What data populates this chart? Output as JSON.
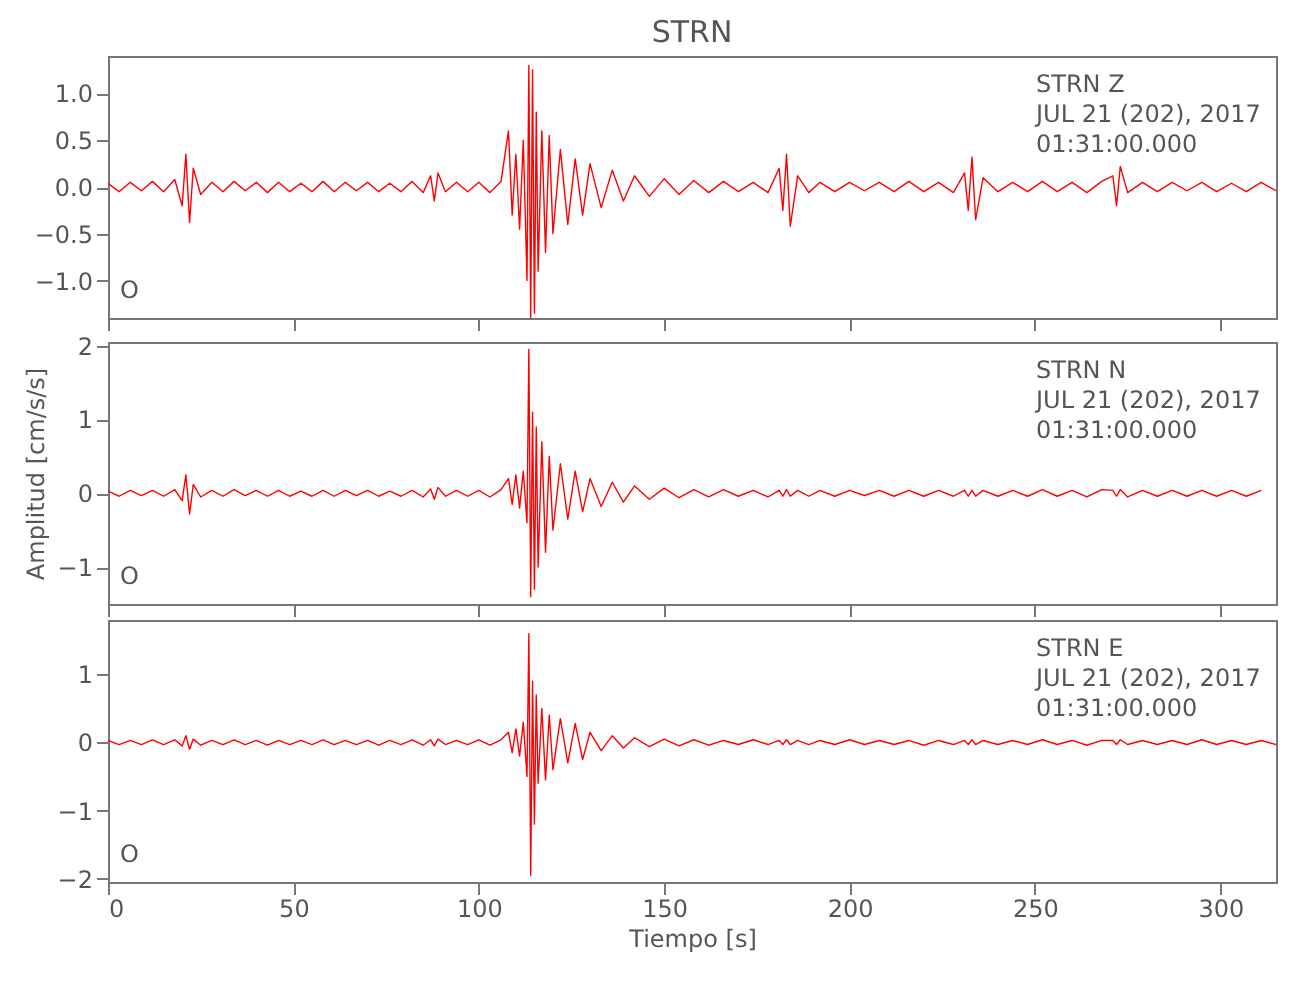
{
  "chart_data": [
    {
      "type": "line",
      "title": "STRN",
      "xlim": [
        0,
        315
      ],
      "xticks": [
        0,
        50,
        100,
        150,
        200,
        250,
        300
      ],
      "ylim": [
        -1.4,
        1.4
      ],
      "yticks": [
        {
          "value": -1,
          "label": "−1.0"
        },
        {
          "value": -0.5,
          "label": "−0.5"
        },
        {
          "value": 0,
          "label": "0.0"
        },
        {
          "value": 0.5,
          "label": "0.5"
        },
        {
          "value": 1,
          "label": "1.0"
        }
      ],
      "tick_labels": "y",
      "annotations": [
        "STRN   Z",
        "JUL 21 (202), 2017",
        "01:31:00.000",
        "O"
      ],
      "series": [
        {
          "color": "#ff0000",
          "x": [
            0,
            3,
            6,
            9,
            12,
            15,
            18,
            20,
            21,
            22,
            23,
            25,
            28,
            31,
            34,
            37,
            40,
            43,
            46,
            49,
            52,
            55,
            58,
            61,
            64,
            67,
            70,
            73,
            76,
            79,
            82,
            85,
            87,
            88,
            89,
            91,
            94,
            97,
            100,
            103,
            106,
            108,
            109,
            110,
            111,
            112,
            113,
            113.5,
            114,
            114.5,
            115,
            115.5,
            116,
            117,
            118,
            119,
            120,
            122,
            124,
            126,
            128,
            130,
            133,
            136,
            139,
            142,
            146,
            150,
            154,
            158,
            162,
            166,
            170,
            174,
            178,
            181,
            182,
            183,
            184,
            186,
            189,
            192,
            196,
            200,
            204,
            208,
            212,
            216,
            220,
            224,
            228,
            231,
            232,
            233,
            234,
            236,
            240,
            244,
            248,
            252,
            256,
            260,
            264,
            268,
            271,
            272,
            273,
            275,
            279,
            283,
            287,
            291,
            295,
            299,
            303,
            307,
            311,
            315
          ],
          "values": [
            0.04,
            -0.05,
            0.05,
            -0.04,
            0.06,
            -0.05,
            0.08,
            -0.2,
            0.35,
            -0.38,
            0.2,
            -0.08,
            0.05,
            -0.05,
            0.06,
            -0.04,
            0.05,
            -0.06,
            0.05,
            -0.05,
            0.04,
            -0.05,
            0.06,
            -0.05,
            0.05,
            -0.04,
            0.05,
            -0.05,
            0.04,
            -0.05,
            0.06,
            -0.06,
            0.12,
            -0.15,
            0.15,
            -0.05,
            0.05,
            -0.05,
            0.05,
            -0.06,
            0.06,
            0.6,
            -0.3,
            0.35,
            -0.45,
            0.5,
            -1.0,
            1.3,
            -1.4,
            1.25,
            -1.35,
            0.8,
            -0.9,
            0.6,
            -0.7,
            0.55,
            -0.5,
            0.4,
            -0.4,
            0.3,
            -0.3,
            0.25,
            -0.22,
            0.18,
            -0.15,
            0.12,
            -0.1,
            0.09,
            -0.08,
            0.07,
            -0.06,
            0.06,
            -0.05,
            0.05,
            -0.06,
            0.2,
            -0.25,
            0.35,
            -0.42,
            0.12,
            -0.06,
            0.05,
            -0.05,
            0.05,
            -0.04,
            0.05,
            -0.05,
            0.06,
            -0.05,
            0.05,
            -0.06,
            0.15,
            -0.25,
            0.32,
            -0.35,
            0.1,
            -0.05,
            0.05,
            -0.05,
            0.06,
            -0.05,
            0.05,
            -0.06,
            0.06,
            0.12,
            -0.2,
            0.22,
            -0.06,
            0.05,
            -0.05,
            0.05,
            -0.04,
            0.05,
            -0.05,
            0.04,
            -0.05,
            0.05,
            -0.04
          ]
        }
      ]
    },
    {
      "type": "line",
      "ylabel": "Amplitud [cm/s/s]",
      "xlim": [
        0,
        315
      ],
      "xticks": [
        0,
        50,
        100,
        150,
        200,
        250,
        300
      ],
      "ylim": [
        -1.5,
        2.05
      ],
      "yticks": [
        {
          "value": -1,
          "label": "−1"
        },
        0,
        1,
        2
      ],
      "tick_labels": "y",
      "annotations": [
        "STRN   N",
        "JUL 21 (202), 2017",
        "01:31:00.000",
        "O"
      ],
      "series": [
        {
          "color": "#ff0000",
          "x": [
            0,
            3,
            6,
            9,
            12,
            15,
            18,
            20,
            21,
            22,
            23,
            25,
            28,
            31,
            34,
            37,
            40,
            43,
            46,
            49,
            52,
            55,
            58,
            61,
            64,
            67,
            70,
            73,
            76,
            79,
            82,
            85,
            87,
            88,
            89,
            91,
            94,
            97,
            100,
            103,
            106,
            108,
            109,
            110,
            111,
            112,
            113,
            113.5,
            114,
            114.5,
            115,
            115.5,
            116,
            117,
            118,
            119,
            120,
            122,
            124,
            126,
            128,
            130,
            133,
            136,
            139,
            142,
            146,
            150,
            154,
            158,
            162,
            166,
            170,
            174,
            178,
            181,
            182,
            183,
            184,
            186,
            189,
            192,
            196,
            200,
            204,
            208,
            212,
            216,
            220,
            224,
            228,
            231,
            232,
            233,
            234,
            236,
            240,
            244,
            248,
            252,
            256,
            260,
            264,
            268,
            271,
            272,
            273,
            275,
            279,
            283,
            287,
            291,
            295,
            299,
            303,
            307,
            311
          ],
          "values": [
            0.03,
            -0.04,
            0.04,
            -0.03,
            0.04,
            -0.04,
            0.05,
            -0.1,
            0.25,
            -0.28,
            0.12,
            -0.05,
            0.04,
            -0.04,
            0.05,
            -0.03,
            0.04,
            -0.04,
            0.04,
            -0.04,
            0.03,
            -0.04,
            0.04,
            -0.04,
            0.04,
            -0.03,
            0.04,
            -0.04,
            0.03,
            -0.04,
            0.04,
            -0.05,
            0.06,
            -0.08,
            0.08,
            -0.04,
            0.04,
            -0.04,
            0.04,
            -0.05,
            0.05,
            0.2,
            -0.15,
            0.25,
            -0.2,
            0.3,
            -0.4,
            1.95,
            -1.4,
            1.1,
            -1.3,
            0.9,
            -1.0,
            0.7,
            -0.8,
            0.5,
            -0.5,
            0.4,
            -0.35,
            0.3,
            -0.25,
            0.2,
            -0.18,
            0.15,
            -0.12,
            0.1,
            -0.08,
            0.07,
            -0.06,
            0.05,
            -0.05,
            0.05,
            -0.04,
            0.04,
            -0.05,
            0.04,
            -0.04,
            0.05,
            -0.04,
            0.04,
            -0.04,
            0.04,
            -0.04,
            0.04,
            -0.03,
            0.04,
            -0.04,
            0.04,
            -0.04,
            0.04,
            -0.04,
            0.04,
            -0.04,
            0.04,
            -0.04,
            0.04,
            -0.04,
            0.04,
            -0.04,
            0.05,
            -0.04,
            0.04,
            -0.05,
            0.05,
            0.04,
            -0.04,
            0.05,
            -0.05,
            0.04,
            -0.04,
            0.04,
            -0.04,
            0.04,
            -0.04,
            0.04,
            -0.04,
            0.04
          ]
        }
      ]
    },
    {
      "type": "line",
      "xlabel": "Tiempo [s]",
      "xlim": [
        0,
        315
      ],
      "xticks": [
        0,
        50,
        100,
        150,
        200,
        250,
        300
      ],
      "ylim": [
        -2.05,
        1.8
      ],
      "yticks": [
        {
          "value": -2,
          "label": "−2"
        },
        {
          "value": -1,
          "label": "−1"
        },
        0,
        1
      ],
      "annotations": [
        "STRN   E",
        "JUL 21 (202), 2017",
        "01:31:00.000",
        "O"
      ],
      "series": [
        {
          "color": "#ff0000",
          "x": [
            0,
            3,
            6,
            9,
            12,
            15,
            18,
            20,
            21,
            22,
            23,
            25,
            28,
            31,
            34,
            37,
            40,
            43,
            46,
            49,
            52,
            55,
            58,
            61,
            64,
            67,
            70,
            73,
            76,
            79,
            82,
            85,
            87,
            88,
            89,
            91,
            94,
            97,
            100,
            103,
            106,
            108,
            109,
            110,
            111,
            112,
            113,
            113.5,
            114,
            114.5,
            115,
            115.5,
            116,
            117,
            118,
            119,
            120,
            122,
            124,
            126,
            128,
            130,
            133,
            136,
            139,
            142,
            146,
            150,
            154,
            158,
            162,
            166,
            170,
            174,
            178,
            181,
            182,
            183,
            184,
            186,
            189,
            192,
            196,
            200,
            204,
            208,
            212,
            216,
            220,
            224,
            228,
            231,
            232,
            233,
            234,
            236,
            240,
            244,
            248,
            252,
            256,
            260,
            264,
            268,
            271,
            272,
            273,
            275,
            279,
            283,
            287,
            291,
            295,
            299,
            303,
            307,
            311,
            315
          ],
          "values": [
            0.03,
            -0.03,
            0.03,
            -0.03,
            0.04,
            -0.03,
            0.04,
            -0.05,
            0.1,
            -0.1,
            0.05,
            -0.04,
            0.03,
            -0.03,
            0.04,
            -0.03,
            0.03,
            -0.04,
            0.03,
            -0.03,
            0.03,
            -0.03,
            0.04,
            -0.03,
            0.03,
            -0.03,
            0.03,
            -0.04,
            0.03,
            -0.03,
            0.04,
            -0.04,
            0.04,
            -0.05,
            0.05,
            -0.03,
            0.03,
            -0.03,
            0.04,
            -0.04,
            0.04,
            0.15,
            -0.15,
            0.2,
            -0.2,
            0.3,
            -0.5,
            1.6,
            -1.95,
            0.9,
            -1.2,
            0.7,
            -0.6,
            0.5,
            -0.55,
            0.4,
            -0.4,
            0.35,
            -0.3,
            0.28,
            -0.25,
            0.15,
            -0.12,
            0.1,
            -0.08,
            0.07,
            -0.06,
            0.05,
            -0.05,
            0.04,
            -0.04,
            0.03,
            -0.03,
            0.04,
            -0.03,
            0.03,
            -0.03,
            0.04,
            -0.03,
            0.03,
            -0.03,
            0.03,
            -0.03,
            0.04,
            -0.03,
            0.03,
            -0.03,
            0.03,
            -0.04,
            0.03,
            -0.03,
            0.03,
            -0.03,
            0.04,
            -0.03,
            0.03,
            -0.03,
            0.03,
            -0.03,
            0.04,
            -0.03,
            0.03,
            -0.04,
            0.03,
            0.03,
            -0.03,
            0.04,
            -0.03,
            0.03,
            -0.03,
            0.03,
            -0.03,
            0.04,
            -0.03,
            0.03,
            -0.03,
            0.03,
            -0.03
          ]
        }
      ]
    }
  ]
}
